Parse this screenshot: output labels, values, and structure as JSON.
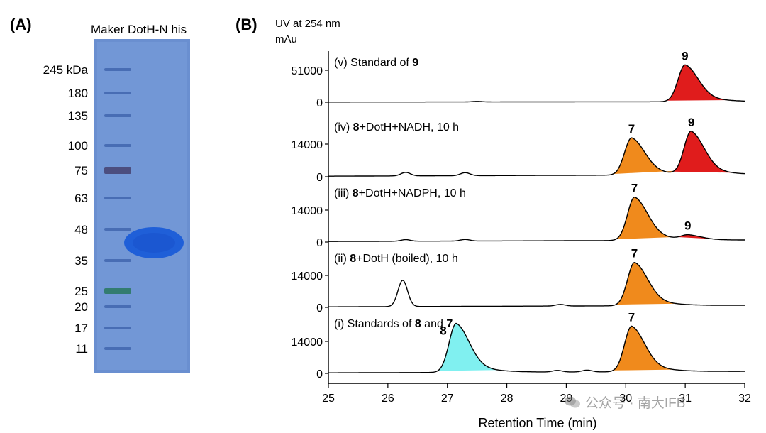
{
  "panels": {
    "a_label": "(A)",
    "b_label": "(B)"
  },
  "gel": {
    "header": "Maker DotH-N his",
    "markers": [
      {
        "label": "245 kDa",
        "value": 245
      },
      {
        "label": "180",
        "value": 180
      },
      {
        "label": "135",
        "value": 135
      },
      {
        "label": "100",
        "value": 100
      },
      {
        "label": "75",
        "value": 75
      },
      {
        "label": "63",
        "value": 63
      },
      {
        "label": "48",
        "value": 48
      },
      {
        "label": "35",
        "value": 35
      },
      {
        "label": "25",
        "value": 25
      },
      {
        "label": "20",
        "value": 20
      },
      {
        "label": "17",
        "value": 17
      },
      {
        "label": "11",
        "value": 11
      }
    ],
    "colors": {
      "gel_bg": "#6a8fd0",
      "ladder": "#3b5fa8",
      "band_75": "#4a4a7a",
      "band_25": "#2f7a6a",
      "protein_band": "#1f5fd8"
    }
  },
  "chart_data": {
    "type": "line",
    "ylabel_top": "UV at 254 nm",
    "ylabel_unit": "mAu",
    "xlabel": "Retention Time (min)",
    "xlim": [
      25,
      32
    ],
    "x_ticks": [
      25,
      26,
      27,
      28,
      29,
      30,
      31,
      32
    ],
    "colors": {
      "compound_7": "#f08a1c",
      "compound_8": "#80f0f0",
      "compound_9": "#e01c1c",
      "trace": "#000000"
    },
    "traces": [
      {
        "label_pre": "(v) Standard of ",
        "label_bold1": "9",
        "label_mid": "",
        "label_bold2": "",
        "label_post": "",
        "ymax": 51000,
        "y_ticks": [
          0,
          51000
        ],
        "baseline_bumps": [
          {
            "rt": 27.5,
            "h": 900
          }
        ],
        "peaks": [
          {
            "compound": "9",
            "rt": 31.0,
            "height": 59000,
            "fill": "compound_9"
          }
        ]
      },
      {
        "label_pre": "(iv) ",
        "label_bold1": "8",
        "label_mid": "+DotH+NADH, 10 h",
        "label_bold2": "",
        "label_post": "",
        "ymax": 14000,
        "y_ticks": [
          0,
          14000
        ],
        "baseline_bumps": [
          {
            "rt": 26.3,
            "h": 1500
          },
          {
            "rt": 27.3,
            "h": 1300
          }
        ],
        "peaks": [
          {
            "compound": "7",
            "rt": 30.1,
            "height": 16000,
            "fill": "compound_7"
          },
          {
            "compound": "9",
            "rt": 31.1,
            "height": 18500,
            "fill": "compound_9"
          }
        ]
      },
      {
        "label_pre": "(iii) ",
        "label_bold1": "8",
        "label_mid": "+DotH+NADPH, 10 h",
        "label_bold2": "",
        "label_post": "",
        "ymax": 14000,
        "y_ticks": [
          0,
          14000
        ],
        "baseline_bumps": [
          {
            "rt": 26.3,
            "h": 700
          },
          {
            "rt": 27.3,
            "h": 700
          }
        ],
        "peaks": [
          {
            "compound": "7",
            "rt": 30.15,
            "height": 19000,
            "fill": "compound_7"
          },
          {
            "compound": "9",
            "rt": 31.05,
            "height": 2000,
            "fill": "compound_9"
          }
        ]
      },
      {
        "label_pre": "(ii) ",
        "label_bold1": "8",
        "label_mid": "+DotH (boiled), 10 h",
        "label_bold2": "",
        "label_post": "",
        "ymax": 14000,
        "y_ticks": [
          0,
          14000
        ],
        "baseline_bumps": [
          {
            "rt": 26.25,
            "h": 11500
          },
          {
            "rt": 28.9,
            "h": 700
          }
        ],
        "peaks": [
          {
            "compound": "7",
            "rt": 30.15,
            "height": 19000,
            "fill": "compound_7"
          }
        ]
      },
      {
        "label_pre": "(i) Standards of ",
        "label_bold1": "8",
        "label_mid": " and ",
        "label_bold2": "7",
        "label_post": "",
        "ymax": 14000,
        "y_ticks": [
          0,
          14000
        ],
        "baseline_bumps": [
          {
            "rt": 28.85,
            "h": 700
          },
          {
            "rt": 29.35,
            "h": 800
          }
        ],
        "peaks": [
          {
            "compound": "8",
            "rt": 27.15,
            "height": 21500,
            "fill": "compound_8"
          },
          {
            "compound": "7",
            "rt": 30.1,
            "height": 20000,
            "fill": "compound_7"
          }
        ]
      }
    ]
  },
  "watermark": "公众号 · 南大IFB"
}
